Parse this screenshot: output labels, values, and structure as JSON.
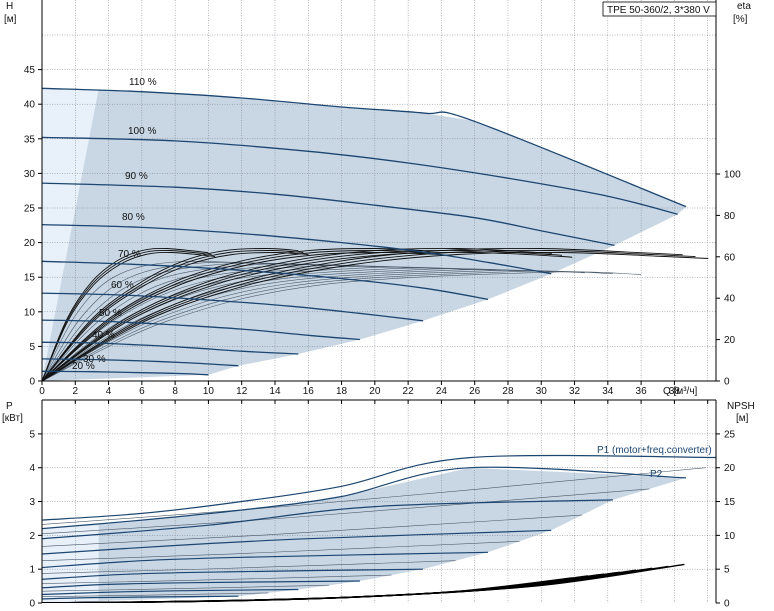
{
  "title_box": "TPE 50-360/2, 3*380 V",
  "top_chart": {
    "y_left_label": [
      "H",
      "[м]"
    ],
    "y_right_label": [
      "eta",
      "[%]"
    ],
    "x_label": "Q [м³/ч]",
    "x_ticks": [
      "0",
      "2",
      "4",
      "6",
      "8",
      "10",
      "12",
      "14",
      "16",
      "18",
      "20",
      "22",
      "24",
      "26",
      "28",
      "30",
      "32",
      "34",
      "36",
      "38"
    ],
    "y_left_ticks": [
      "0",
      "5",
      "10",
      "15",
      "20",
      "25",
      "30",
      "35",
      "40",
      "45"
    ],
    "y_right_ticks": [
      "0",
      "20",
      "40",
      "60",
      "80",
      "100"
    ],
    "speed_labels": [
      "110 %",
      "100 %",
      "90 %",
      "80 %",
      "70 %",
      "60 %",
      "50 %",
      "40 %",
      "30 %",
      "20 %"
    ]
  },
  "bottom_chart": {
    "y_left_label": [
      "P",
      "[кВт]"
    ],
    "y_right_label": [
      "NPSH",
      "[м]"
    ],
    "y_left_ticks": [
      "0",
      "1",
      "2",
      "3",
      "4",
      "5"
    ],
    "y_right_ticks": [
      "0",
      "5",
      "10",
      "15",
      "20",
      "25"
    ],
    "p1_label": "P1 (motor+freq.converter)",
    "p2_label": "P2"
  },
  "chart_data": [
    {
      "type": "line",
      "title": "TPE 50-360/2, 3*380 V",
      "xlabel": "Q [м³/ч]",
      "ylabel": "H [м]",
      "y2label": "eta [%]",
      "xlim": [
        0,
        40.5
      ],
      "ylim": [
        0,
        50
      ],
      "y2lim": [
        0,
        100
      ],
      "speed_pct": [
        110,
        100,
        90,
        80,
        70,
        60,
        50,
        40,
        30,
        20
      ],
      "head_curves": [
        {
          "speed": 110,
          "points": [
            [
              0,
              42.3
            ],
            [
              6,
              41.8
            ],
            [
              12,
              40.9
            ],
            [
              18,
              39.6
            ],
            [
              23,
              38.7
            ],
            [
              25.9,
              37.6
            ],
            [
              38.7,
              25.2
            ]
          ]
        },
        {
          "speed": 100,
          "points": [
            [
              0,
              35.2
            ],
            [
              8,
              34.7
            ],
            [
              16,
              33.2
            ],
            [
              22,
              31.5
            ],
            [
              28,
              29.3
            ],
            [
              34,
              26.7
            ],
            [
              38.2,
              24.1
            ]
          ]
        },
        {
          "speed": 90,
          "points": [
            [
              0,
              28.6
            ],
            [
              8,
              28.0
            ],
            [
              14,
              27.0
            ],
            [
              20,
              25.4
            ],
            [
              26,
              23.6
            ],
            [
              30.2,
              21.6
            ],
            [
              34.4,
              19.6
            ]
          ]
        },
        {
          "speed": 80,
          "points": [
            [
              0,
              22.6
            ],
            [
              6,
              22.2
            ],
            [
              12,
              21.3
            ],
            [
              18,
              20.0
            ],
            [
              23,
              18.6
            ],
            [
              26.9,
              17.1
            ],
            [
              30.6,
              15.5
            ]
          ]
        },
        {
          "speed": 70,
          "points": [
            [
              0,
              17.3
            ],
            [
              6,
              16.8
            ],
            [
              12,
              16.0
            ],
            [
              18,
              14.8
            ],
            [
              23,
              13.4
            ],
            [
              26.8,
              11.8
            ]
          ]
        },
        {
          "speed": 60,
          "points": [
            [
              0,
              12.7
            ],
            [
              5,
              12.4
            ],
            [
              10,
              11.7
            ],
            [
              15,
              10.8
            ],
            [
              19,
              9.8
            ],
            [
              22.9,
              8.7
            ]
          ]
        },
        {
          "speed": 50,
          "points": [
            [
              0,
              8.8
            ],
            [
              4,
              8.6
            ],
            [
              8,
              8.1
            ],
            [
              12,
              7.5
            ],
            [
              16,
              6.6
            ],
            [
              19.1,
              6.0
            ]
          ]
        },
        {
          "speed": 40,
          "points": [
            [
              0,
              5.6
            ],
            [
              3,
              5.5
            ],
            [
              6,
              5.2
            ],
            [
              9,
              4.8
            ],
            [
              12,
              4.3
            ],
            [
              15.4,
              3.9
            ]
          ]
        },
        {
          "speed": 30,
          "points": [
            [
              0,
              3.2
            ],
            [
              3,
              3.1
            ],
            [
              6,
              2.9
            ],
            [
              9,
              2.6
            ],
            [
              11.8,
              2.2
            ]
          ]
        },
        {
          "speed": 20,
          "points": [
            [
              0,
              1.4
            ],
            [
              3,
              1.35
            ],
            [
              6,
              1.2
            ],
            [
              8,
              1.1
            ],
            [
              10,
              0.9
            ]
          ]
        }
      ],
      "eta_curves": [
        {
          "speed": 100,
          "points": [
            [
              0,
              0
            ],
            [
              6,
              30
            ],
            [
              12,
              48
            ],
            [
              18,
              58
            ],
            [
              24,
              63
            ],
            [
              30,
              64
            ],
            [
              36,
              62
            ],
            [
              38.5,
              61
            ]
          ]
        },
        {
          "speed": 80,
          "points": [
            [
              0,
              0
            ],
            [
              5,
              30
            ],
            [
              10,
              48
            ],
            [
              15,
              58
            ],
            [
              20,
              63
            ],
            [
              25,
              64
            ],
            [
              30,
              62
            ],
            [
              30.6,
              61.5
            ]
          ]
        },
        {
          "speed": 60,
          "points": [
            [
              0,
              0
            ],
            [
              4,
              30
            ],
            [
              8,
              48
            ],
            [
              12,
              58
            ],
            [
              16,
              63
            ],
            [
              20,
              64
            ],
            [
              22.9,
              63
            ]
          ]
        },
        {
          "speed": 40,
          "points": [
            [
              0,
              0
            ],
            [
              3,
              30
            ],
            [
              6,
              48
            ],
            [
              8.5,
              58
            ],
            [
              11,
              63
            ],
            [
              13.5,
              64
            ],
            [
              15.4,
              63
            ]
          ]
        },
        {
          "speed": 20,
          "points": [
            [
              0,
              0
            ],
            [
              1.5,
              30
            ],
            [
              3,
              48
            ],
            [
              4.5,
              58
            ],
            [
              6,
              63
            ],
            [
              7.5,
              64
            ],
            [
              10,
              62
            ]
          ]
        }
      ]
    },
    {
      "type": "line",
      "xlabel": "Q [м³/ч]",
      "ylabel": "P [кВт]",
      "y2label": "NPSH [м]",
      "xlim": [
        0,
        40.5
      ],
      "ylim": [
        0,
        5.5
      ],
      "y2lim": [
        0,
        27.5
      ],
      "series": [
        {
          "name": "P1 (motor+freq.converter)",
          "points": [
            [
              0,
              2.45
            ],
            [
              6,
              2.65
            ],
            [
              12,
              3.0
            ],
            [
              18,
              3.45
            ],
            [
              25.7,
              4.3
            ],
            [
              41.1,
              4.3
            ]
          ]
        },
        {
          "name": "P2",
          "points": [
            [
              0,
              2.2
            ],
            [
              6,
              2.45
            ],
            [
              12,
              2.75
            ],
            [
              18,
              3.15
            ],
            [
              25.7,
              4.0
            ],
            [
              38.7,
              3.7
            ]
          ]
        },
        {
          "name": "",
          "points": [
            [
              0,
              1.9
            ],
            [
              10,
              2.3
            ],
            [
              20,
              2.85
            ],
            [
              34.3,
              3.05
            ]
          ]
        },
        {
          "name": "",
          "points": [
            [
              0,
              1.45
            ],
            [
              8,
              1.7
            ],
            [
              16,
              1.9
            ],
            [
              30.6,
              2.15
            ]
          ]
        },
        {
          "name": "",
          "points": [
            [
              0,
              1.05
            ],
            [
              6,
              1.25
            ],
            [
              12,
              1.35
            ],
            [
              26.8,
              1.5
            ]
          ]
        },
        {
          "name": "",
          "points": [
            [
              0,
              0.7
            ],
            [
              5,
              0.85
            ],
            [
              11,
              0.92
            ],
            [
              22.9,
              1.0
            ]
          ]
        },
        {
          "name": "",
          "points": [
            [
              0,
              0.45
            ],
            [
              4,
              0.55
            ],
            [
              9,
              0.6
            ],
            [
              19.1,
              0.65
            ]
          ]
        },
        {
          "name": "",
          "points": [
            [
              0,
              0.25
            ],
            [
              4,
              0.32
            ],
            [
              8,
              0.36
            ],
            [
              15.4,
              0.4
            ]
          ]
        },
        {
          "name": "",
          "points": [
            [
              0,
              0.12
            ],
            [
              3,
              0.16
            ],
            [
              7,
              0.18
            ],
            [
              11.8,
              0.2
            ]
          ]
        }
      ],
      "npsh": {
        "points": [
          [
            0,
            0
          ],
          [
            10,
            0.3
          ],
          [
            20,
            1.0
          ],
          [
            30,
            2.6
          ],
          [
            38.6,
            5.7
          ]
        ]
      }
    }
  ]
}
